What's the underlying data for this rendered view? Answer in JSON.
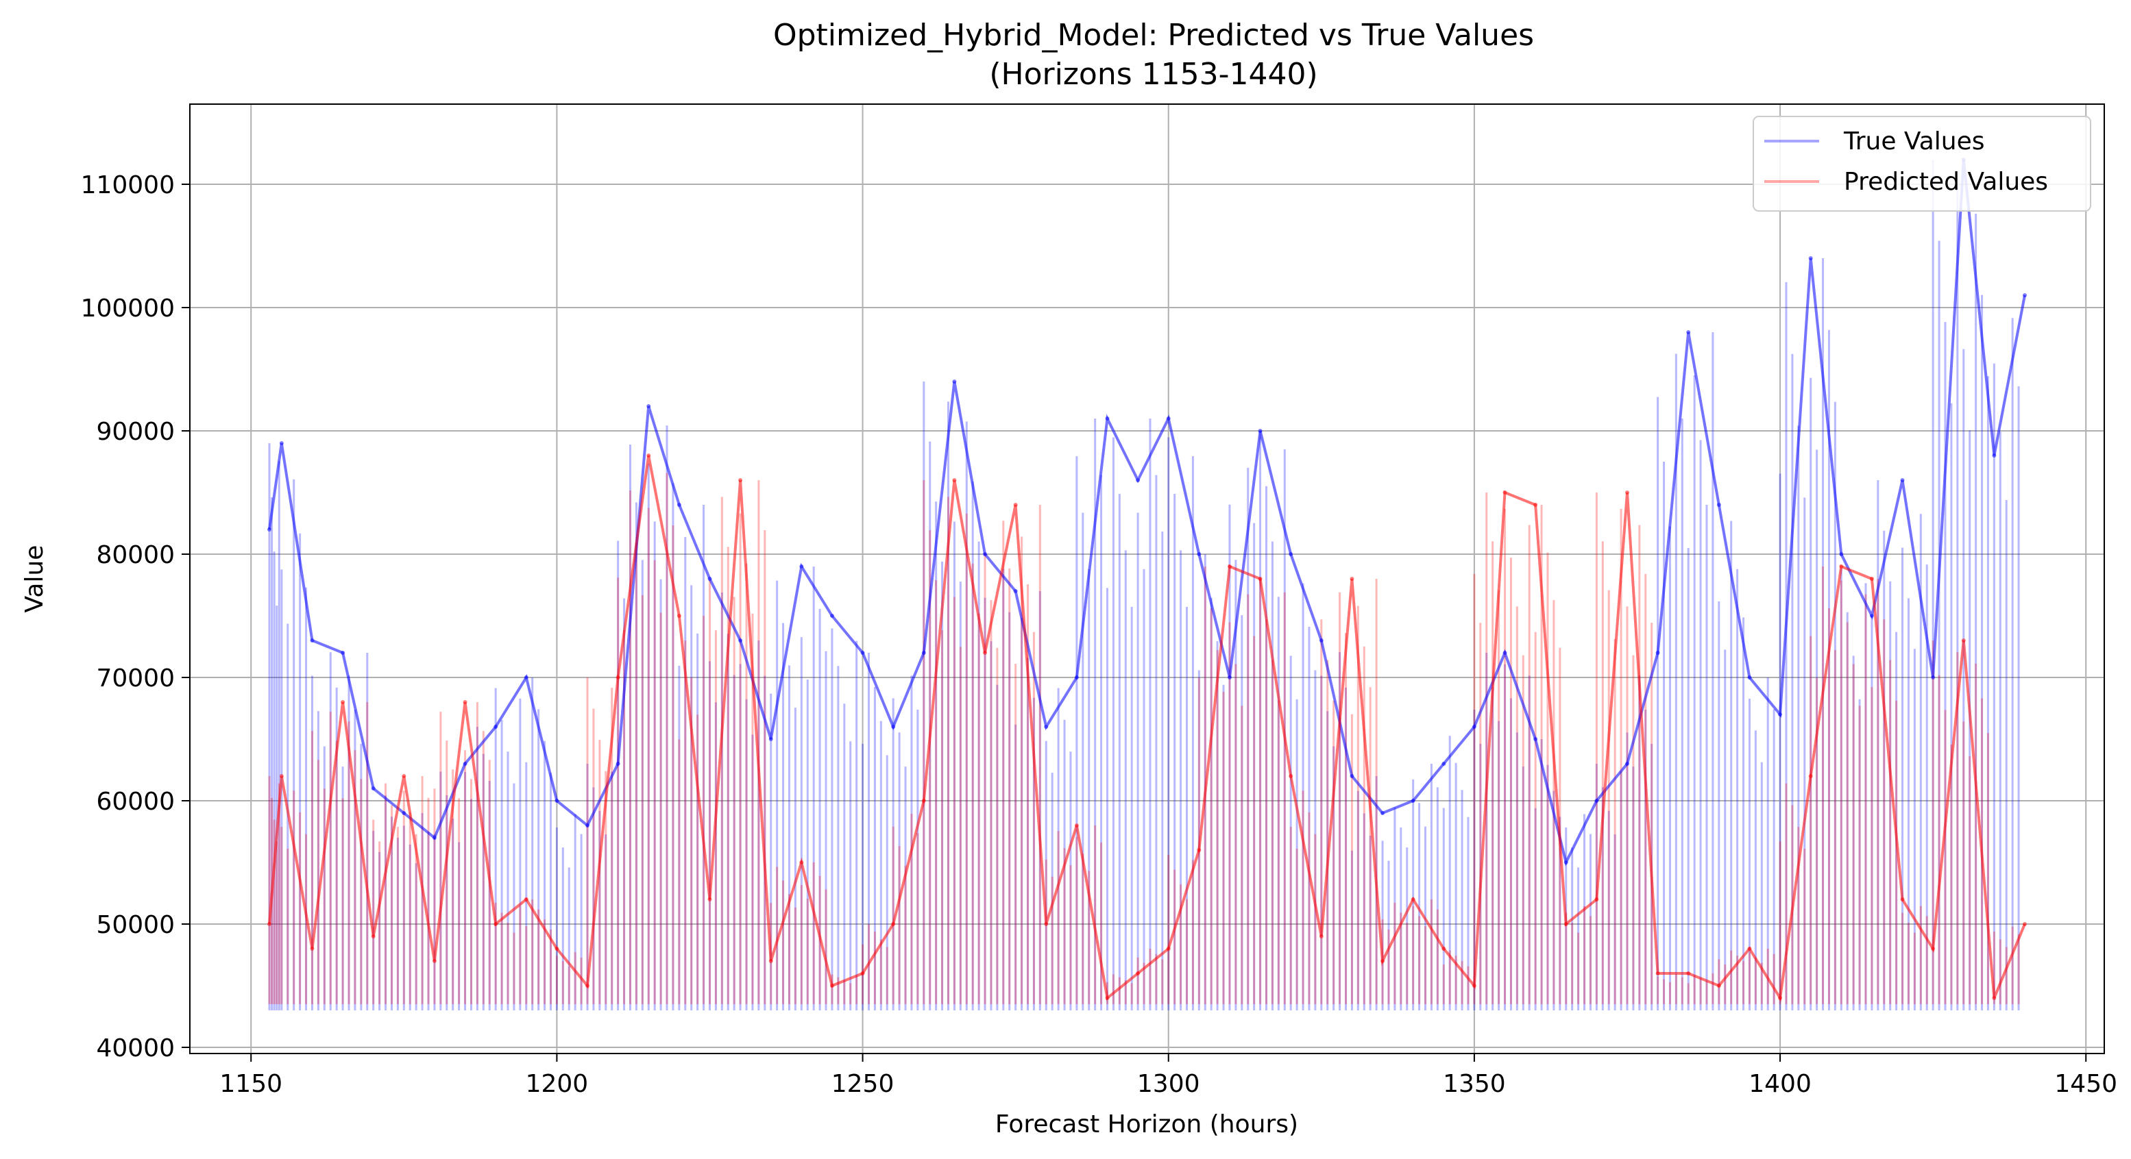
{
  "chart_data": {
    "type": "line",
    "title": "Optimized_Hybrid_Model: Predicted vs True Values",
    "subtitle": "(Horizons 1153-1440)",
    "xlabel": "Forecast Horizon (hours)",
    "ylabel": "Value",
    "xlim": [
      1140,
      1453
    ],
    "ylim": [
      39500,
      116500
    ],
    "xticks": [
      1150,
      1200,
      1250,
      1300,
      1350,
      1400,
      1450
    ],
    "yticks": [
      40000,
      50000,
      60000,
      70000,
      80000,
      90000,
      100000,
      110000
    ],
    "grid": true,
    "legend_position": "top-right",
    "colors": {
      "true": "#0000ff",
      "predicted": "#ff0000"
    },
    "series": [
      {
        "name": "True Values",
        "x": [
          1153,
          1155,
          1160,
          1165,
          1170,
          1175,
          1180,
          1185,
          1190,
          1195,
          1200,
          1205,
          1210,
          1215,
          1220,
          1225,
          1230,
          1235,
          1240,
          1245,
          1250,
          1255,
          1260,
          1265,
          1270,
          1275,
          1280,
          1285,
          1290,
          1295,
          1300,
          1305,
          1310,
          1315,
          1320,
          1325,
          1330,
          1335,
          1340,
          1345,
          1350,
          1355,
          1360,
          1365,
          1370,
          1375,
          1380,
          1385,
          1390,
          1395,
          1400,
          1405,
          1410,
          1415,
          1420,
          1425,
          1430,
          1435,
          1440
        ],
        "values": [
          82000,
          89000,
          73000,
          72000,
          61000,
          59000,
          57000,
          63000,
          66000,
          70000,
          60000,
          58000,
          63000,
          92000,
          84000,
          78000,
          73000,
          65000,
          79000,
          75000,
          72000,
          66000,
          72000,
          94000,
          80000,
          77000,
          66000,
          70000,
          91000,
          86000,
          91000,
          80000,
          70000,
          90000,
          80000,
          73000,
          62000,
          59000,
          60000,
          63000,
          66000,
          72000,
          65000,
          55000,
          60000,
          63000,
          72000,
          98000,
          84000,
          70000,
          67000,
          104000,
          80000,
          75000,
          86000,
          70000,
          112000,
          88000,
          101000
        ]
      },
      {
        "name": "Predicted Values",
        "x": [
          1153,
          1155,
          1160,
          1165,
          1170,
          1175,
          1180,
          1185,
          1190,
          1195,
          1200,
          1205,
          1210,
          1215,
          1220,
          1225,
          1230,
          1235,
          1240,
          1245,
          1250,
          1255,
          1260,
          1265,
          1270,
          1275,
          1280,
          1285,
          1290,
          1295,
          1300,
          1305,
          1310,
          1315,
          1320,
          1325,
          1330,
          1335,
          1340,
          1345,
          1350,
          1355,
          1360,
          1365,
          1370,
          1375,
          1380,
          1385,
          1390,
          1395,
          1400,
          1405,
          1410,
          1415,
          1420,
          1425,
          1430,
          1435,
          1440
        ],
        "values": [
          50000,
          62000,
          48000,
          68000,
          49000,
          62000,
          47000,
          68000,
          50000,
          52000,
          48000,
          45000,
          70000,
          88000,
          75000,
          52000,
          86000,
          47000,
          55000,
          45000,
          46000,
          50000,
          60000,
          86000,
          72000,
          84000,
          50000,
          58000,
          44000,
          46000,
          48000,
          56000,
          79000,
          78000,
          62000,
          49000,
          78000,
          47000,
          52000,
          48000,
          45000,
          85000,
          84000,
          50000,
          52000,
          85000,
          46000,
          46000,
          45000,
          48000,
          44000,
          62000,
          79000,
          78000,
          52000,
          48000,
          73000,
          44000,
          50000
        ]
      }
    ]
  }
}
